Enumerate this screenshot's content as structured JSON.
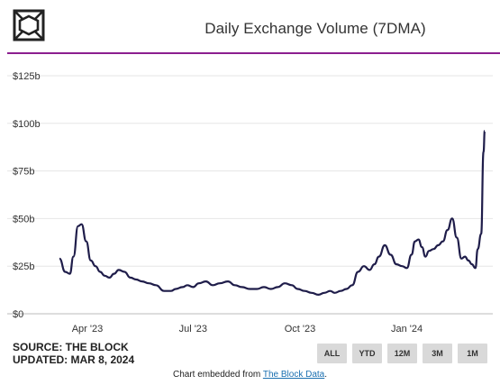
{
  "header": {
    "logo": "the-block-logo",
    "title": "Daily Exchange Volume (7DMA)",
    "accent_color": "#8b1f8f"
  },
  "chart_data": {
    "type": "line",
    "title": "Daily Exchange Volume (7DMA)",
    "xlabel": "",
    "ylabel": "",
    "ylim": [
      0,
      125
    ],
    "y_ticks": [
      0,
      25,
      50,
      75,
      100,
      125
    ],
    "y_tick_labels": [
      "$0",
      "$25b",
      "$50b",
      "$75b",
      "$100b",
      "$125b"
    ],
    "x_tick_labels": [
      "Apr '23",
      "Jul '23",
      "Oct '23",
      "Jan '24"
    ],
    "x_ticks": [
      "2023-04-01",
      "2023-07-01",
      "2023-10-01",
      "2024-01-01"
    ],
    "x_range": [
      "2023-03-08",
      "2024-03-08"
    ],
    "grid": "horizontal",
    "line_color": "#1f1d4a",
    "series": [
      {
        "name": "",
        "x": [
          "2023-03-08",
          "2023-03-13",
          "2023-03-17",
          "2023-03-20",
          "2023-03-24",
          "2023-03-27",
          "2023-03-31",
          "2023-04-04",
          "2023-04-08",
          "2023-04-12",
          "2023-04-16",
          "2023-04-20",
          "2023-04-24",
          "2023-04-28",
          "2023-05-03",
          "2023-05-08",
          "2023-05-13",
          "2023-05-18",
          "2023-05-24",
          "2023-05-30",
          "2023-06-06",
          "2023-06-12",
          "2023-06-16",
          "2023-06-22",
          "2023-06-26",
          "2023-07-01",
          "2023-07-06",
          "2023-07-12",
          "2023-07-18",
          "2023-07-24",
          "2023-07-31",
          "2023-08-06",
          "2023-08-12",
          "2023-08-19",
          "2023-08-25",
          "2023-08-31",
          "2023-09-06",
          "2023-09-12",
          "2023-09-18",
          "2023-09-24",
          "2023-09-29",
          "2023-10-05",
          "2023-10-11",
          "2023-10-17",
          "2023-10-22",
          "2023-10-27",
          "2023-10-31",
          "2023-11-05",
          "2023-11-10",
          "2023-11-15",
          "2023-11-20",
          "2023-11-25",
          "2023-11-30",
          "2023-12-04",
          "2023-12-08",
          "2023-12-13",
          "2023-12-18",
          "2023-12-23",
          "2023-12-28",
          "2024-01-01",
          "2024-01-05",
          "2024-01-08",
          "2024-01-11",
          "2024-01-14",
          "2024-01-17",
          "2024-01-20",
          "2024-01-24",
          "2024-01-28",
          "2024-02-01",
          "2024-02-05",
          "2024-02-09",
          "2024-02-13",
          "2024-02-17",
          "2024-02-20",
          "2024-02-23",
          "2024-02-26",
          "2024-02-29",
          "2024-03-02",
          "2024-03-05",
          "2024-03-07",
          "2024-03-08"
        ],
        "values": [
          29,
          22,
          21,
          30,
          46,
          47,
          38,
          28,
          25,
          22,
          20,
          19,
          21,
          23,
          22,
          19,
          18,
          17,
          16,
          15,
          12,
          12,
          13,
          14,
          15,
          14,
          16,
          17,
          15,
          16,
          17,
          15,
          14,
          13,
          13,
          14,
          13,
          14,
          16,
          15,
          13,
          12,
          11,
          10,
          11,
          12,
          11,
          12,
          13,
          15,
          22,
          25,
          23,
          26,
          30,
          36,
          31,
          26,
          25,
          24,
          31,
          38,
          39,
          35,
          30,
          33,
          34,
          36,
          38,
          44,
          50,
          40,
          29,
          30,
          28,
          26,
          24,
          34,
          42,
          85,
          96
        ]
      }
    ]
  },
  "footer": {
    "source_line": "SOURCE: THE BLOCK",
    "updated_line": "UPDATED: MAR 8, 2024",
    "buttons": [
      "ALL",
      "YTD",
      "12M",
      "3M",
      "1M"
    ],
    "embed_text": "Chart embedded from ",
    "embed_link": "The Block Data",
    "embed_end": "."
  }
}
